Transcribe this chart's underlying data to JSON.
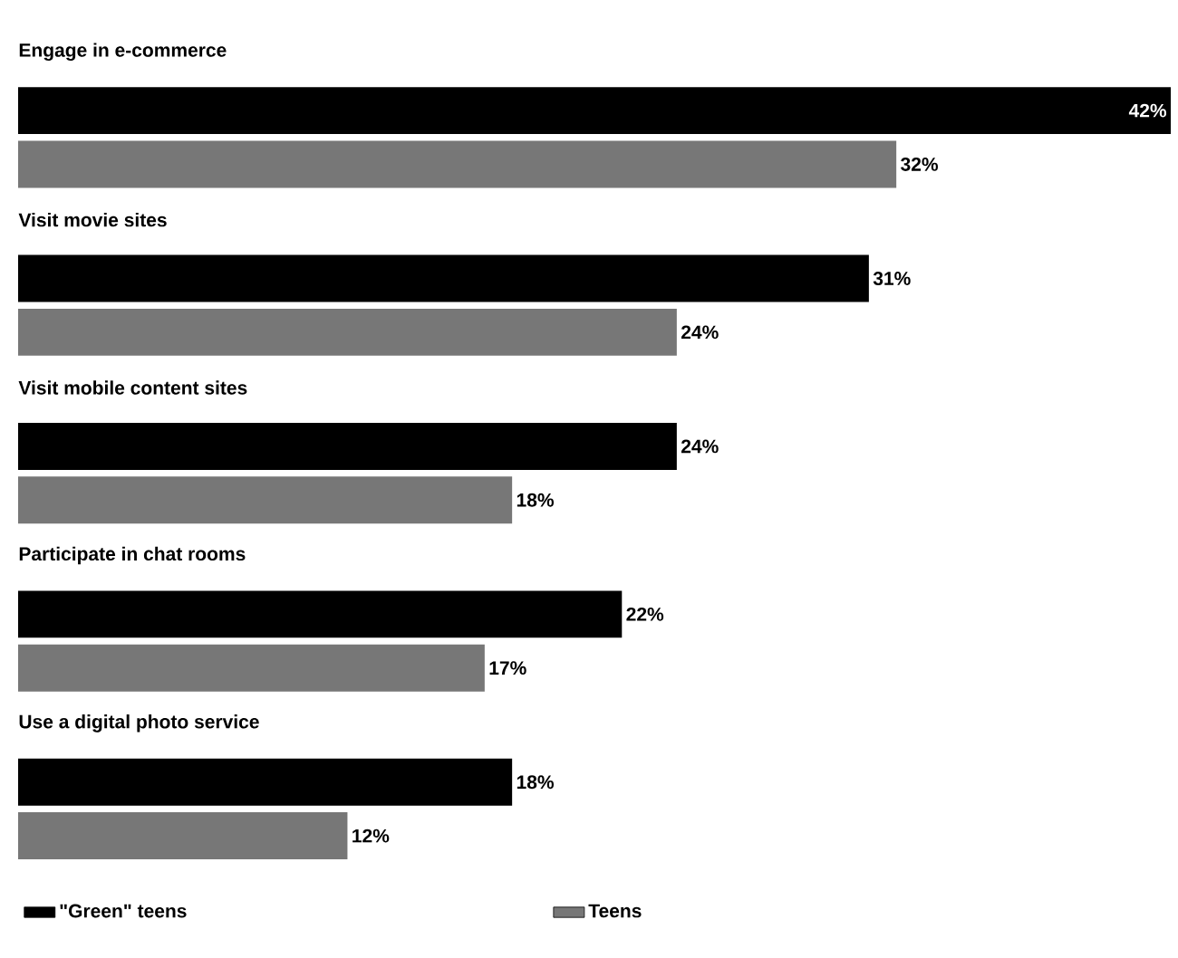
{
  "chart_data": {
    "type": "bar",
    "orientation": "horizontal",
    "categories": [
      "Engage in e-commerce",
      "Visit movie sites",
      "Visit mobile content sites",
      "Participate in chat rooms",
      "Use a digital photo service"
    ],
    "series": [
      {
        "name": "\"Green\" teens",
        "color": "#000000",
        "values": [
          42,
          31,
          24,
          22,
          18
        ],
        "value_labels": [
          "42%",
          "31%",
          "24%",
          "22%",
          "18%"
        ]
      },
      {
        "name": "Teens",
        "color": "#777777",
        "values": [
          32,
          24,
          18,
          17,
          12
        ],
        "value_labels": [
          "32%",
          "24%",
          "18%",
          "17%",
          "12%"
        ]
      }
    ],
    "legend": "bottom"
  }
}
